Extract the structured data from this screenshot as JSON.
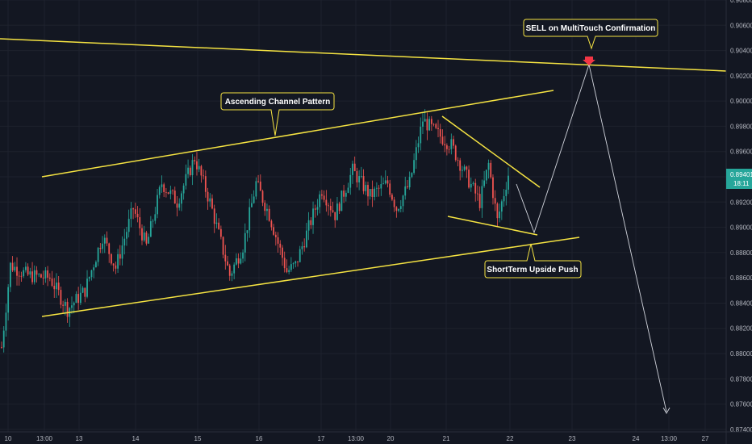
{
  "chart_data": {
    "type": "candlestick",
    "colors": {
      "background": "#131722",
      "up": "#26a69a",
      "down": "#ef5350",
      "trendline": "#f5e342",
      "projection": "#d1d4dc",
      "price_badge": "#26a69a",
      "sell_marker": "#f23645",
      "grid": "#1e222d"
    },
    "y_axis": {
      "ylim": [
        0.8738,
        0.908
      ],
      "ticks": [
        "0.90800",
        "0.90600",
        "0.90400",
        "0.90200",
        "0.90000",
        "0.89800",
        "0.89600",
        "0.89400",
        "0.89200",
        "0.89000",
        "0.88800",
        "0.88600",
        "0.88400",
        "0.88200",
        "0.88000",
        "0.87800",
        "0.87600",
        "0.87400"
      ]
    },
    "x_axis": {
      "ticks": [
        "10",
        "13:00",
        "13",
        "14",
        "15",
        "16",
        "17",
        "13:00",
        "20",
        "21",
        "22",
        "23",
        "24",
        "13:00",
        "27"
      ]
    },
    "current_price": {
      "value": "0.89401",
      "countdown": "18:11"
    },
    "candles_seed": {
      "count": 232,
      "start": 0.8805,
      "path": [
        [
          0,
          0.8805
        ],
        [
          4,
          0.887
        ],
        [
          12,
          0.8862
        ],
        [
          22,
          0.886
        ],
        [
          30,
          0.8835
        ],
        [
          38,
          0.885
        ],
        [
          46,
          0.8893
        ],
        [
          52,
          0.8868
        ],
        [
          60,
          0.8915
        ],
        [
          66,
          0.8885
        ],
        [
          73,
          0.8935
        ],
        [
          80,
          0.892
        ],
        [
          88,
          0.8955
        ],
        [
          95,
          0.892
        ],
        [
          104,
          0.8862
        ],
        [
          110,
          0.8885
        ],
        [
          116,
          0.8935
        ],
        [
          122,
          0.891
        ],
        [
          130,
          0.8865
        ],
        [
          134,
          0.887
        ],
        [
          140,
          0.89
        ],
        [
          146,
          0.893
        ],
        [
          152,
          0.891
        ],
        [
          160,
          0.8945
        ],
        [
          168,
          0.8925
        ],
        [
          176,
          0.8935
        ],
        [
          180,
          0.8915
        ],
        [
          186,
          0.8935
        ],
        [
          192,
          0.8985
        ],
        [
          198,
          0.8975
        ],
        [
          205,
          0.8965
        ],
        [
          212,
          0.894
        ],
        [
          218,
          0.892
        ],
        [
          222,
          0.895
        ],
        [
          226,
          0.8905
        ],
        [
          231,
          0.8942
        ]
      ]
    },
    "annotations": [
      {
        "text": "SELL on MultiTouch Confirmation"
      },
      {
        "text": "Ascending Channel Pattern"
      },
      {
        "text": "ShortTerm Upside Push"
      }
    ]
  }
}
